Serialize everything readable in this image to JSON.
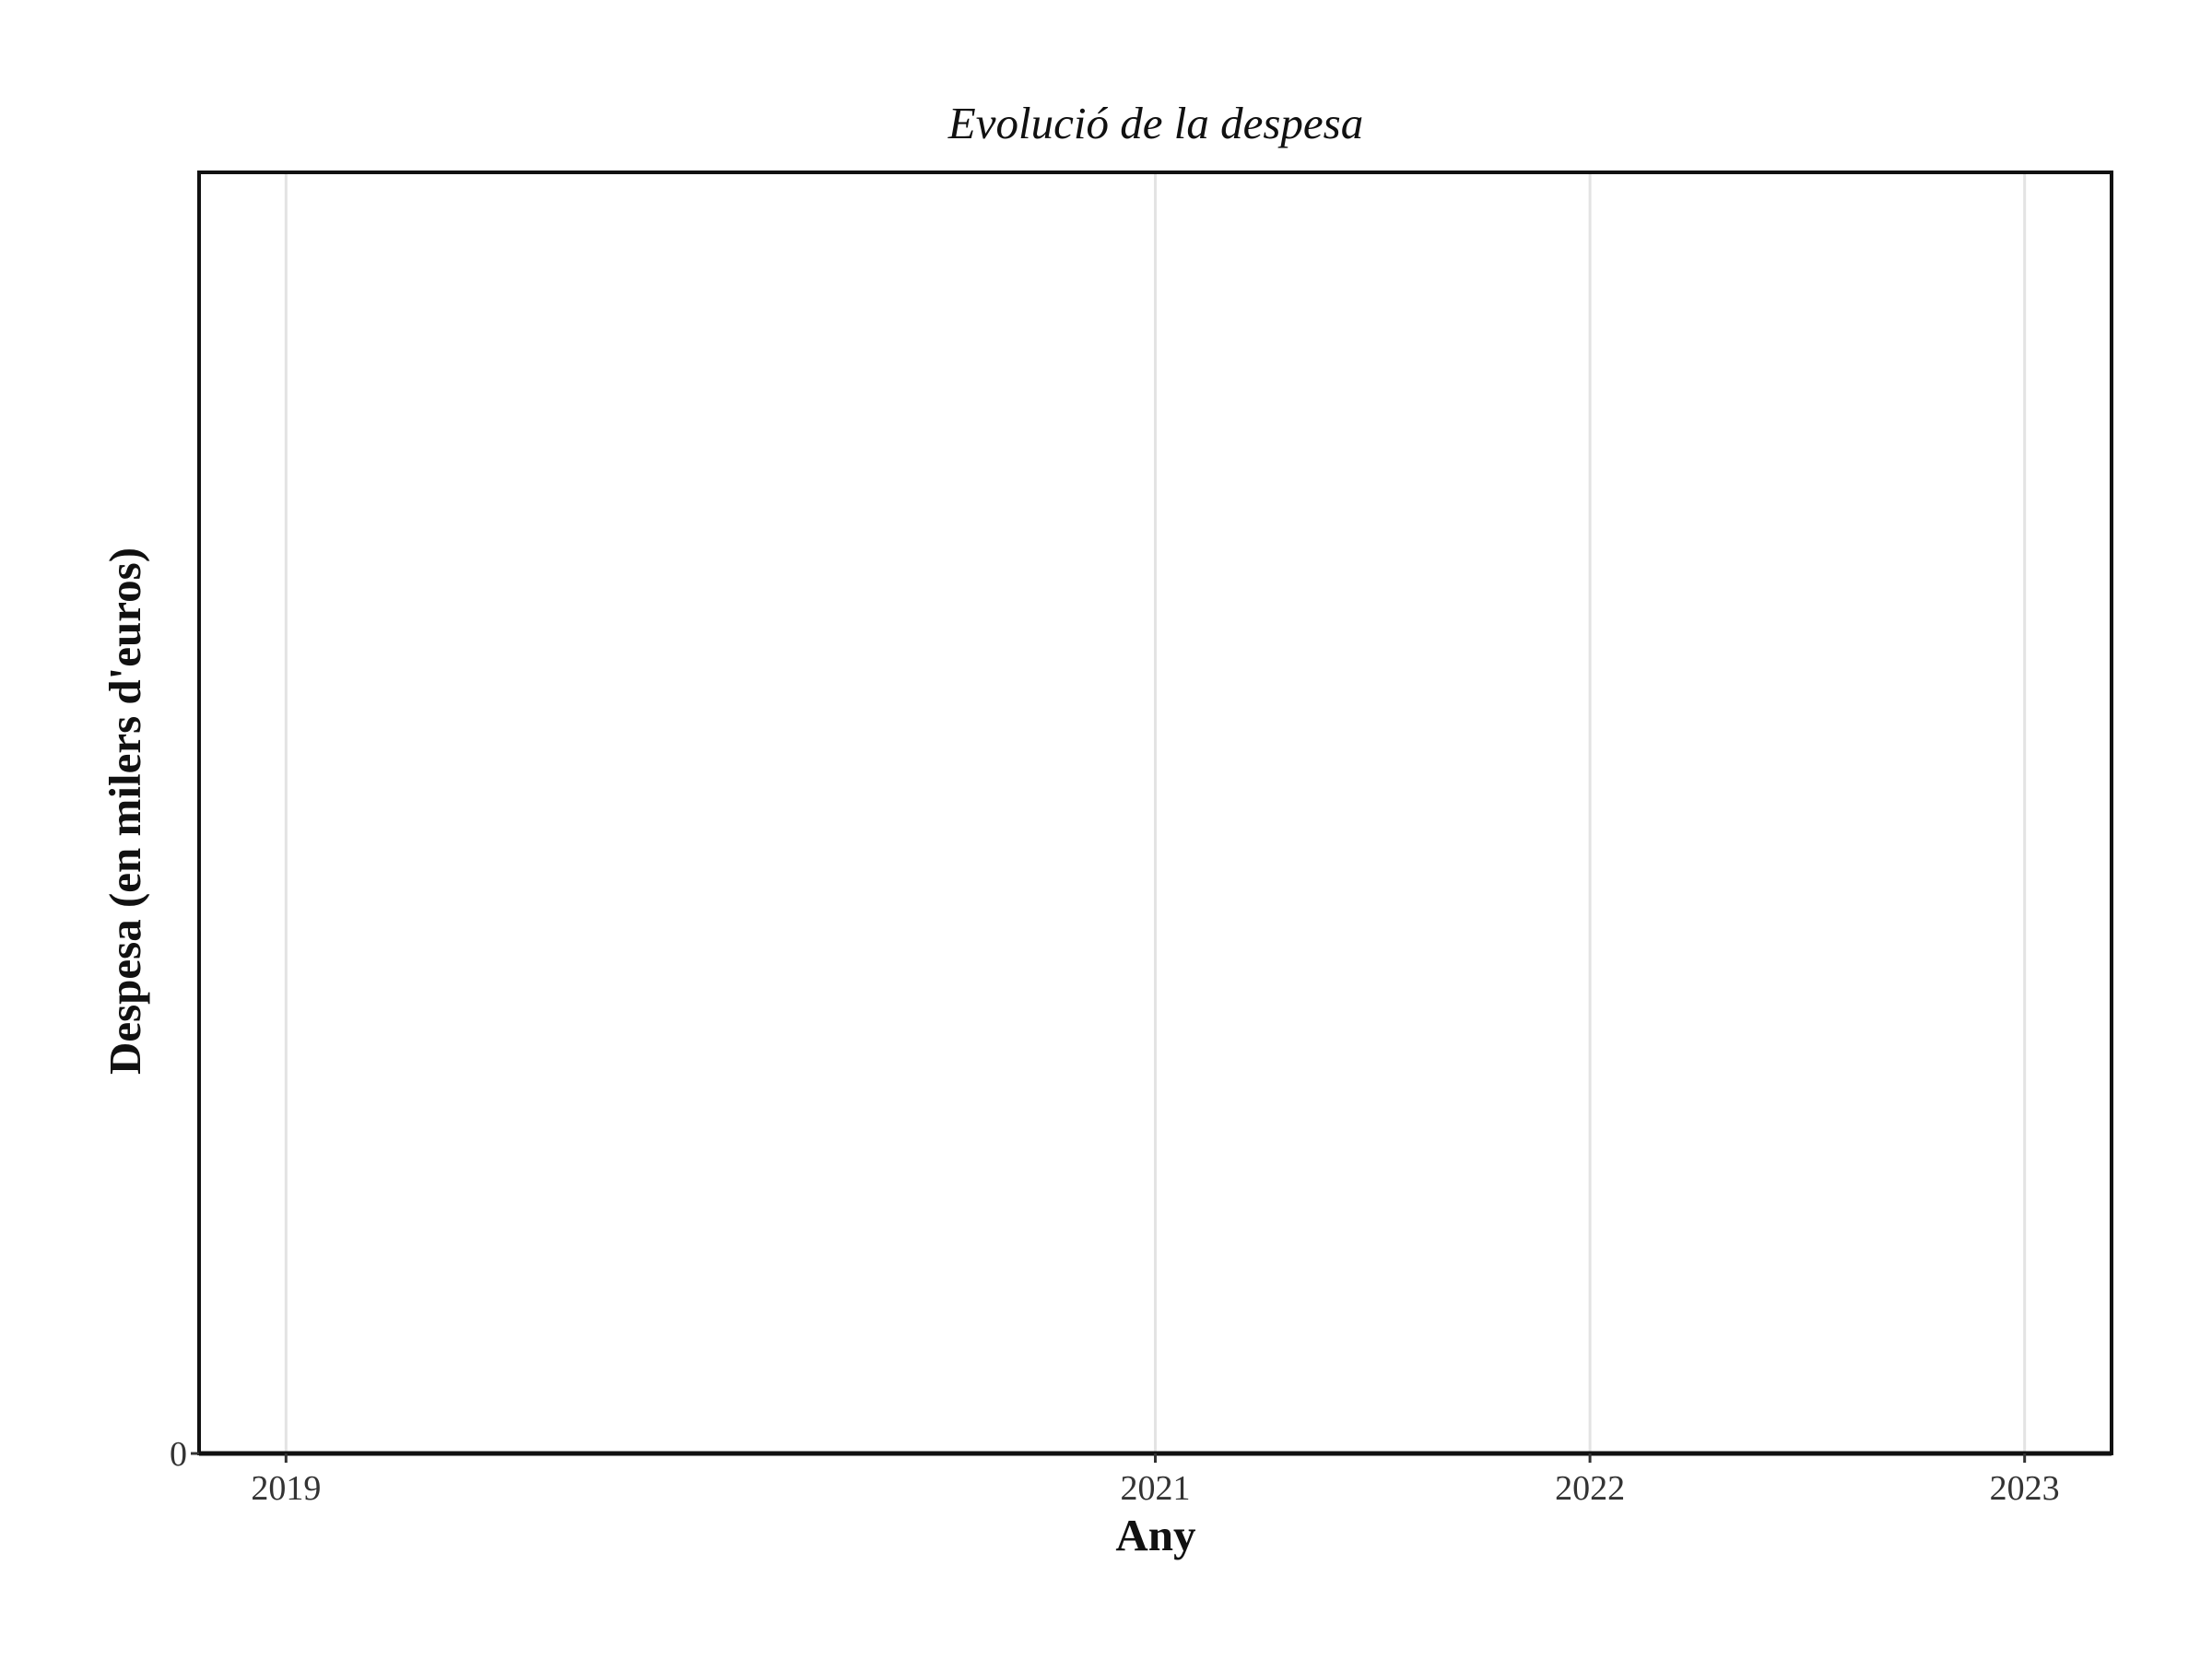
{
  "chart_data": {
    "type": "line",
    "title": "Evolució de la despesa",
    "xlabel": "Any",
    "ylabel": "Despesa (en milers d'euros)",
    "x_ticks": [
      "2019",
      "2021",
      "2022",
      "2023"
    ],
    "y_ticks": [
      "0"
    ],
    "xlim": [
      2018.8,
      2023.2
    ],
    "ylim": [
      0,
      1
    ],
    "grid": true,
    "series": []
  }
}
